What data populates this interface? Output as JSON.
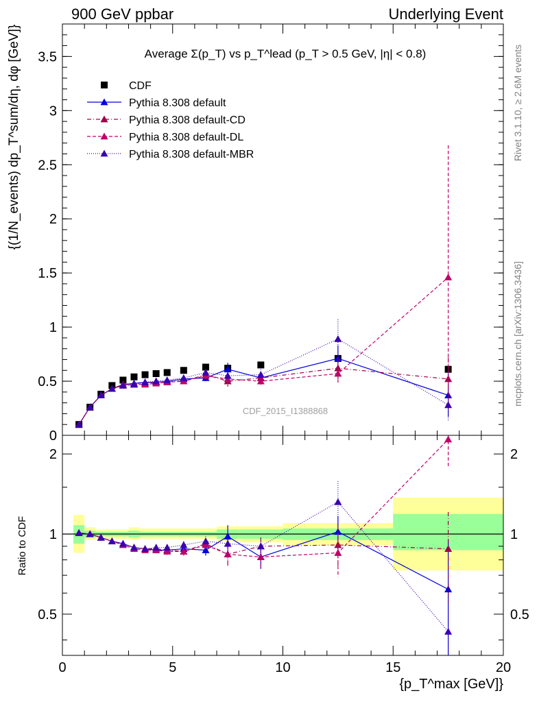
{
  "header": {
    "left": "900 GeV ppbar",
    "right": "Underlying Event"
  },
  "side_labels": {
    "rivet": "Rivet 3.1.10, ≥ 2.6M events",
    "mcplots": "mcplots.cern.ch [arXiv:1306.3436]"
  },
  "chart_data": [
    {
      "type": "scatter",
      "panel": "main",
      "title": "Average Σ(p_T) vs p_T^lead (p_T > 0.5 GeV, |η| < 0.8)",
      "ylabel": "{(1/N_events) dp_T^sum/dη, dφ [GeV]}",
      "watermark": "CDF_2015_I1388868",
      "xlim": [
        0,
        20
      ],
      "ylim": [
        0,
        3.8
      ],
      "yticks": [
        0,
        0.5,
        1,
        1.5,
        2,
        2.5,
        3,
        3.5
      ],
      "ytick_labels": [
        "0",
        "0.5",
        "1",
        "1.5",
        "2",
        "2.5",
        "3",
        "3.5"
      ],
      "grid": false,
      "legend_position": "top-left",
      "x": [
        0.75,
        1.25,
        1.75,
        2.25,
        2.75,
        3.25,
        3.75,
        4.25,
        4.75,
        5.5,
        6.5,
        7.5,
        9.0,
        12.5,
        17.5
      ],
      "series": [
        {
          "name": "CDF",
          "color": "#000000",
          "style": "square",
          "dash": "",
          "values": [
            0.1,
            0.26,
            0.38,
            0.46,
            0.51,
            0.54,
            0.56,
            0.57,
            0.58,
            0.6,
            0.63,
            0.62,
            0.65,
            0.71,
            0.61
          ]
        },
        {
          "name": "Pythia 8.308 default",
          "color": "#0000dd",
          "style": "triangle",
          "dash": "",
          "values": [
            0.1,
            0.26,
            0.37,
            0.43,
            0.47,
            0.48,
            0.49,
            0.49,
            0.5,
            0.52,
            0.53,
            0.61,
            0.53,
            0.71,
            0.37
          ],
          "errors": [
            0.003,
            0.004,
            0.005,
            0.006,
            0.007,
            0.008,
            0.009,
            0.012,
            0.015,
            0.02,
            0.03,
            0.06,
            0.05,
            0.12,
            0.2
          ]
        },
        {
          "name": "Pythia 8.308 default-CD",
          "color": "#a0004a",
          "style": "triangle",
          "dash": "6,3,1,3",
          "values": [
            0.1,
            0.26,
            0.37,
            0.43,
            0.47,
            0.47,
            0.48,
            0.49,
            0.5,
            0.5,
            0.56,
            0.5,
            0.53,
            0.62,
            0.52
          ],
          "errors": [
            0.003,
            0.004,
            0.005,
            0.006,
            0.007,
            0.008,
            0.009,
            0.012,
            0.015,
            0.02,
            0.03,
            0.05,
            0.05,
            0.1,
            0.2
          ]
        },
        {
          "name": "Pythia 8.308 default-DL",
          "color": "#c0006a",
          "style": "triangle",
          "dash": "5,3",
          "values": [
            0.1,
            0.26,
            0.37,
            0.43,
            0.46,
            0.47,
            0.47,
            0.48,
            0.49,
            0.5,
            0.55,
            0.52,
            0.5,
            0.57,
            1.46
          ],
          "errors": [
            0.003,
            0.004,
            0.005,
            0.006,
            0.007,
            0.008,
            0.009,
            0.012,
            0.015,
            0.02,
            0.03,
            0.05,
            0.05,
            0.1,
            1.22
          ]
        },
        {
          "name": "Pythia 8.308 default-MBR",
          "color": "#3b00b0",
          "style": "triangle",
          "dash": "1,2",
          "values": [
            0.1,
            0.26,
            0.37,
            0.43,
            0.46,
            0.47,
            0.49,
            0.5,
            0.51,
            0.53,
            0.58,
            0.55,
            0.56,
            0.89,
            0.28
          ],
          "errors": [
            0.003,
            0.004,
            0.005,
            0.006,
            0.007,
            0.008,
            0.009,
            0.012,
            0.015,
            0.02,
            0.03,
            0.05,
            0.05,
            0.18,
            0.15
          ]
        }
      ]
    },
    {
      "type": "scatter",
      "panel": "ratio",
      "ylabel": "Ratio to CDF",
      "xlabel": "{p_T^max [GeV]}",
      "xlim": [
        0,
        20
      ],
      "ylim": [
        0.35,
        2.35
      ],
      "log_y": true,
      "xticks": [
        0,
        5,
        10,
        15,
        20
      ],
      "xtick_labels": [
        "0",
        "5",
        "10",
        "15",
        "20"
      ],
      "yticks": [
        0.5,
        1,
        2
      ],
      "ytick_labels": [
        "0.5",
        "1",
        "2"
      ],
      "reference_line": 1,
      "uncertainty_bands": [
        {
          "x0": 0.5,
          "x1": 1.0,
          "yellow": [
            0.85,
            1.18
          ],
          "green": [
            0.92,
            1.08
          ]
        },
        {
          "x0": 1.0,
          "x1": 1.5,
          "yellow": [
            0.95,
            1.06
          ],
          "green": [
            0.97,
            1.03
          ]
        },
        {
          "x0": 1.5,
          "x1": 3.0,
          "yellow": [
            0.96,
            1.04
          ],
          "green": [
            0.98,
            1.02
          ]
        },
        {
          "x0": 3.0,
          "x1": 3.5,
          "yellow": [
            0.95,
            1.06
          ],
          "green": [
            0.97,
            1.03
          ]
        },
        {
          "x0": 3.5,
          "x1": 7.0,
          "yellow": [
            0.96,
            1.05
          ],
          "green": [
            0.98,
            1.02
          ]
        },
        {
          "x0": 7.0,
          "x1": 8.0,
          "yellow": [
            0.94,
            1.07
          ],
          "green": [
            0.96,
            1.04
          ]
        },
        {
          "x0": 8.0,
          "x1": 10.0,
          "yellow": [
            0.93,
            1.07
          ],
          "green": [
            0.96,
            1.04
          ]
        },
        {
          "x0": 10.0,
          "x1": 15.0,
          "yellow": [
            0.91,
            1.1
          ],
          "green": [
            0.95,
            1.05
          ]
        },
        {
          "x0": 15.0,
          "x1": 20.0,
          "yellow": [
            0.73,
            1.37
          ],
          "green": [
            0.87,
            1.19
          ]
        }
      ],
      "x": [
        0.75,
        1.25,
        1.75,
        2.25,
        2.75,
        3.25,
        3.75,
        4.25,
        4.75,
        5.5,
        6.5,
        7.5,
        9.0,
        12.5,
        17.5
      ],
      "series": [
        {
          "name": "Pythia 8.308 default",
          "color": "#0000dd",
          "dash": "",
          "values": [
            1.01,
            1.0,
            0.97,
            0.94,
            0.92,
            0.89,
            0.88,
            0.87,
            0.87,
            0.88,
            0.87,
            0.98,
            0.82,
            1.02,
            0.62
          ],
          "errors": [
            0.01,
            0.01,
            0.01,
            0.01,
            0.01,
            0.015,
            0.02,
            0.02,
            0.025,
            0.03,
            0.04,
            0.1,
            0.08,
            0.15,
            0.33
          ]
        },
        {
          "name": "Pythia 8.308 default-CD",
          "color": "#a0004a",
          "dash": "6,3,1,3",
          "values": [
            1.01,
            1.0,
            0.97,
            0.94,
            0.92,
            0.89,
            0.88,
            0.88,
            0.87,
            0.86,
            0.92,
            0.84,
            0.9,
            0.91,
            0.88
          ],
          "errors": [
            0.01,
            0.01,
            0.01,
            0.01,
            0.01,
            0.015,
            0.02,
            0.02,
            0.025,
            0.03,
            0.04,
            0.08,
            0.07,
            0.15,
            0.33
          ]
        },
        {
          "name": "Pythia 8.308 default-DL",
          "color": "#c0006a",
          "dash": "5,3",
          "values": [
            1.01,
            1.0,
            0.97,
            0.94,
            0.91,
            0.88,
            0.87,
            0.87,
            0.86,
            0.86,
            0.91,
            0.84,
            0.82,
            0.85,
            2.27
          ],
          "errors": [
            0.01,
            0.01,
            0.01,
            0.01,
            0.01,
            0.015,
            0.02,
            0.02,
            0.025,
            0.03,
            0.04,
            0.08,
            0.07,
            0.16,
            0.5
          ]
        },
        {
          "name": "Pythia 8.308 default-MBR",
          "color": "#3b00b0",
          "dash": "1,2",
          "values": [
            1.01,
            1.0,
            0.97,
            0.94,
            0.92,
            0.89,
            0.88,
            0.89,
            0.89,
            0.91,
            0.94,
            0.92,
            0.9,
            1.32,
            0.43
          ],
          "errors": [
            0.01,
            0.01,
            0.01,
            0.01,
            0.01,
            0.015,
            0.02,
            0.02,
            0.025,
            0.03,
            0.04,
            0.08,
            0.07,
            0.26,
            0.22
          ]
        }
      ]
    }
  ]
}
